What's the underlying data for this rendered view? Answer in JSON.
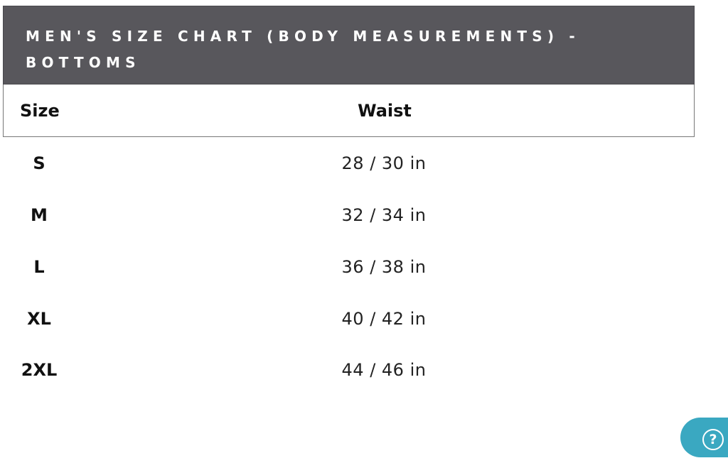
{
  "title": "MEN'S SIZE CHART (BODY MEASUREMENTS) - BOTTOMS",
  "table": {
    "headers": [
      "Size",
      "Waist"
    ],
    "rows": [
      {
        "size": "S",
        "waist": "28 / 30 in"
      },
      {
        "size": "M",
        "waist": "32 / 34 in"
      },
      {
        "size": "L",
        "waist": "36 / 38 in"
      },
      {
        "size": "XL",
        "waist": "40 / 42 in"
      },
      {
        "size": "2XL",
        "waist": "44 / 46 in"
      }
    ]
  },
  "help": {
    "icon": "question-circle-icon",
    "glyph": "?",
    "color": "#3aa8c1"
  },
  "colors": {
    "title_bar": "#58575c"
  }
}
